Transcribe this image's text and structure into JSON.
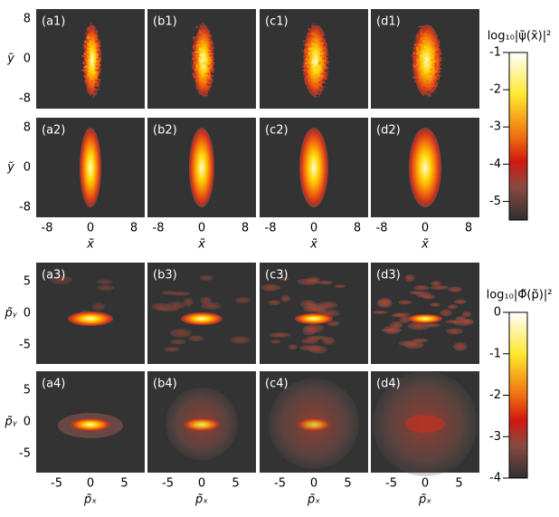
{
  "top": {
    "colorbar": {
      "label": "log₁₀|ψ̃(x̃)|²",
      "lim": [
        -5.5,
        -1
      ],
      "ticks": [
        -1,
        -2,
        -3,
        -4,
        -5
      ]
    },
    "xlabel": "x̃",
    "ylabel": "ỹ",
    "lim": [
      -10,
      10
    ],
    "ticks": [
      -8,
      0,
      8
    ],
    "rows": [
      [
        "(a1)",
        "(b1)",
        "(c1)",
        "(d1)"
      ],
      [
        "(a2)",
        "(b2)",
        "(c2)",
        "(d2)"
      ]
    ]
  },
  "bottom": {
    "colorbar": {
      "label": "log₁₀|Φ̃(p̃)|²",
      "lim": [
        -4,
        0
      ],
      "ticks": [
        0,
        -1,
        -2,
        -3,
        -4
      ]
    },
    "xlabel": "p̃ₓ",
    "ylabel": "p̃ᵧ",
    "lim": [
      -8,
      8
    ],
    "ticks": [
      -5,
      0,
      5
    ],
    "rows": [
      [
        "(a3)",
        "(b3)",
        "(c3)",
        "(d3)"
      ],
      [
        "(a4)",
        "(b4)",
        "(c4)",
        "(d4)"
      ]
    ]
  }
}
